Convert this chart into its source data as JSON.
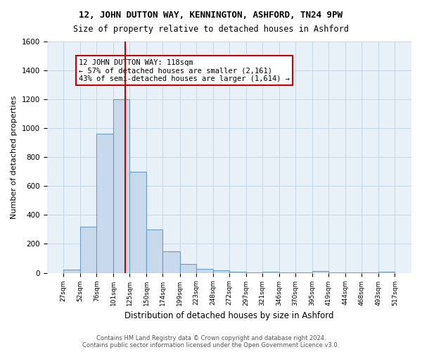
{
  "title": "12, JOHN DUTTON WAY, KENNINGTON, ASHFORD, TN24 9PW",
  "subtitle": "Size of property relative to detached houses in Ashford",
  "xlabel": "Distribution of detached houses by size in Ashford",
  "ylabel": "Number of detached properties",
  "bin_edges": [
    27,
    52,
    76,
    101,
    125,
    150,
    174,
    199,
    223,
    248,
    272,
    297,
    321,
    346,
    370,
    395,
    419,
    444,
    468,
    493,
    517
  ],
  "bar_heights": [
    20,
    320,
    960,
    1200,
    700,
    300,
    150,
    60,
    25,
    15,
    10,
    5,
    8,
    3,
    2,
    12,
    1,
    1,
    1,
    8
  ],
  "bar_color": "#c9d9ec",
  "bar_edge_color": "#6a9ec5",
  "property_size": 118,
  "vline_color": "#cc0000",
  "annotation_text": "12 JOHN DUTTON WAY: 118sqm\n← 57% of detached houses are smaller (2,161)\n43% of semi-detached houses are larger (1,614) →",
  "annotation_box_color": "#ffffff",
  "annotation_box_edge": "#cc0000",
  "ylim": [
    0,
    1600
  ],
  "yticks": [
    0,
    200,
    400,
    600,
    800,
    1000,
    1200,
    1400,
    1600
  ],
  "grid_color": "#b0c4d8",
  "background_color": "#e8f0f8",
  "footer_text": "Contains HM Land Registry data © Crown copyright and database right 2024.\nContains public sector information licensed under the Open Government Licence v3.0.",
  "tick_labels": [
    "27sqm",
    "52sqm",
    "76sqm",
    "101sqm",
    "125sqm",
    "150sqm",
    "174sqm",
    "199sqm",
    "223sqm",
    "248sqm",
    "272sqm",
    "297sqm",
    "321sqm",
    "346sqm",
    "370sqm",
    "395sqm",
    "419sqm",
    "444sqm",
    "468sqm",
    "493sqm",
    "517sqm"
  ]
}
